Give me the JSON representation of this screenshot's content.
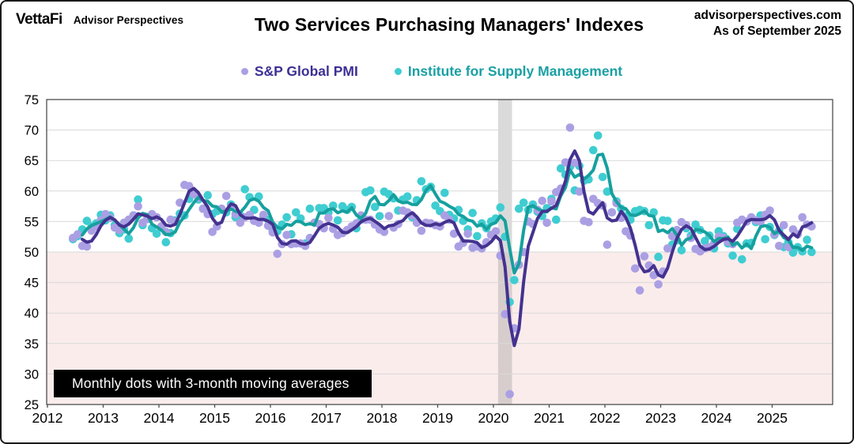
{
  "header": {
    "brand": "VettaFi",
    "brand_sub": "Advisor Perspectives",
    "title": "Two Services Purchasing Managers' Indexes",
    "site": "advisorperspectives.com",
    "as_of": "As of September 2025"
  },
  "legend": {
    "items": [
      {
        "label": "S&P Global PMI",
        "dot_color": "#ab9fe4",
        "text_color": "#3c3093"
      },
      {
        "label": "Institute for Supply Management",
        "dot_color": "#3fcdd1",
        "text_color": "#1aa0a4"
      }
    ]
  },
  "annotation": {
    "label": "Monthly dots with 3-month moving averages"
  },
  "chart_data": {
    "type": "scatter",
    "title": "Two Services Purchasing Managers' Indexes",
    "note": "Monthly dots with 3-month moving averages",
    "x_start": "2012-06",
    "x_end": "2025-09",
    "xlabel": "",
    "ylabel": "",
    "ylim": [
      25,
      75
    ],
    "yticks": [
      25,
      30,
      35,
      40,
      45,
      50,
      55,
      60,
      65,
      70,
      75
    ],
    "xticks": [
      2012,
      2013,
      2014,
      2015,
      2016,
      2017,
      2018,
      2019,
      2020,
      2021,
      2022,
      2023,
      2024,
      2025
    ],
    "grid": true,
    "gridline_color": "#d9d9d9",
    "below_50_fill": "#fbecec",
    "recession_band": {
      "start": "2020-02",
      "end": "2020-04",
      "color": "rgba(140,140,140,0.32)"
    },
    "ma_window": 3,
    "series": [
      {
        "name": "S&P Global PMI",
        "dot_color": "#ab9fe4",
        "line_color": "#44328f",
        "values": [
          52.3,
          52.9,
          51.0,
          50.9,
          53.5,
          54.2,
          55.2,
          56.2,
          55.6,
          54.0,
          53.6,
          54.8,
          55.3,
          56.0,
          57.5,
          54.8,
          55.4,
          56.2,
          55.7,
          54.2,
          53.3,
          55.3,
          55.0,
          58.1,
          61.0,
          60.8,
          59.5,
          58.9,
          57.1,
          56.2,
          53.3,
          54.2,
          57.1,
          59.2,
          57.4,
          56.2,
          54.8,
          55.7,
          56.1,
          55.1,
          54.8,
          56.1,
          54.3,
          53.2,
          49.7,
          51.3,
          52.8,
          51.3,
          51.4,
          51.4,
          51.0,
          52.3,
          54.8,
          54.6,
          53.9,
          55.6,
          53.8,
          52.8,
          53.1,
          53.6,
          54.2,
          54.7,
          56.0,
          55.3,
          55.3,
          54.5,
          53.7,
          53.3,
          55.9,
          54.0,
          54.6,
          56.8,
          56.5,
          56.0,
          54.8,
          53.5,
          54.8,
          54.7,
          54.4,
          54.2,
          56.0,
          55.3,
          53.0,
          50.9,
          51.5,
          53.0,
          50.7,
          50.9,
          50.6,
          51.6,
          52.8,
          53.4,
          49.4,
          39.8,
          26.7,
          37.5,
          47.9,
          50.0,
          55.0,
          54.6,
          56.9,
          58.4,
          54.8,
          58.3,
          59.8,
          60.4,
          64.7,
          70.4,
          64.6,
          59.9,
          55.1,
          54.9,
          58.7,
          58.0,
          57.6,
          51.2,
          56.5,
          58.0,
          55.6,
          53.4,
          52.7,
          47.3,
          43.7,
          49.3,
          47.8,
          46.2,
          44.7,
          46.8,
          50.6,
          52.6,
          53.6,
          54.9,
          54.4,
          52.3,
          50.5,
          50.1,
          50.6,
          50.8,
          51.4,
          52.5,
          52.3,
          51.7,
          51.3,
          54.8,
          55.3,
          55.0,
          55.7,
          55.2,
          55.0,
          56.1,
          56.8,
          52.9,
          51.0,
          54.4,
          50.8,
          53.7,
          52.9,
          55.7,
          54.5,
          54.2
        ]
      },
      {
        "name": "Institute for Supply Management",
        "dot_color": "#3fcdd1",
        "line_color": "#16a09e",
        "values": [
          52.1,
          52.6,
          53.7,
          55.1,
          54.2,
          54.7,
          56.1,
          55.2,
          56.0,
          54.4,
          53.1,
          53.7,
          52.2,
          56.0,
          58.6,
          54.4,
          55.4,
          53.9,
          53.0,
          54.0,
          51.6,
          53.1,
          55.2,
          56.3,
          56.0,
          58.7,
          59.6,
          58.6,
          57.1,
          59.3,
          56.2,
          56.7,
          56.9,
          56.5,
          57.8,
          55.7,
          56.0,
          60.3,
          59.0,
          56.9,
          59.1,
          55.9,
          55.3,
          53.5,
          53.4,
          54.5,
          55.7,
          52.9,
          56.5,
          55.5,
          51.4,
          57.1,
          54.8,
          57.2,
          57.2,
          56.5,
          57.6,
          55.2,
          57.5,
          56.9,
          57.4,
          53.9,
          55.3,
          59.8,
          60.1,
          57.4,
          55.9,
          59.9,
          59.5,
          58.8,
          56.8,
          58.6,
          59.1,
          55.7,
          58.5,
          61.6,
          60.3,
          60.7,
          57.6,
          56.7,
          59.7,
          56.1,
          55.5,
          56.9,
          55.1,
          53.7,
          56.4,
          52.6,
          54.7,
          53.9,
          55.0,
          55.5,
          57.3,
          52.5,
          41.8,
          45.4,
          57.1,
          58.1,
          56.9,
          57.8,
          56.6,
          55.9,
          57.2,
          58.7,
          55.3,
          63.7,
          62.7,
          64.0,
          60.1,
          64.1,
          61.7,
          61.9,
          66.7,
          69.1,
          62.3,
          59.9,
          56.5,
          58.3,
          57.1,
          55.9,
          55.3,
          56.7,
          56.9,
          56.7,
          54.4,
          56.5,
          49.2,
          55.2,
          55.1,
          51.2,
          51.9,
          50.3,
          53.9,
          52.7,
          54.5,
          53.6,
          51.8,
          52.7,
          50.6,
          53.4,
          52.6,
          51.4,
          49.4,
          53.8,
          48.8,
          51.4,
          51.5,
          54.9,
          56.0,
          52.1,
          54.1,
          52.8,
          53.5,
          50.8,
          51.6,
          49.9,
          50.8,
          50.1,
          52.0,
          50.0
        ]
      }
    ]
  }
}
